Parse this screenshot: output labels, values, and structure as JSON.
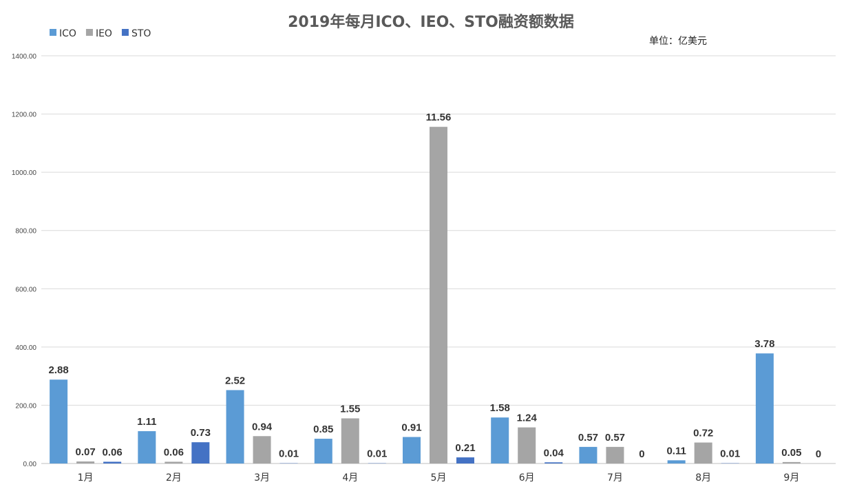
{
  "chart_data": {
    "type": "bar",
    "title": "2019年每月ICO、IEO、STO融资额数据",
    "unit_label": "单位：亿美元",
    "categories": [
      "1月",
      "2月",
      "3月",
      "4月",
      "5月",
      "6月",
      "7月",
      "8月",
      "9月"
    ],
    "series": [
      {
        "name": "ICO",
        "color": "#5b9bd5",
        "values": [
          288,
          111,
          252,
          85,
          91,
          158,
          57,
          11,
          378
        ],
        "labels": [
          "2.88",
          "1.11",
          "2.52",
          "0.85",
          "0.91",
          "1.58",
          "0.57",
          "0.11",
          "3.78"
        ]
      },
      {
        "name": "IEO",
        "color": "#a5a5a5",
        "values": [
          7,
          6,
          94,
          155,
          1156,
          124,
          57,
          72,
          5
        ],
        "labels": [
          "0.07",
          "0.06",
          "0.94",
          "1.55",
          "11.56",
          "1.24",
          "0.57",
          "0.72",
          "0.05"
        ]
      },
      {
        "name": "STO",
        "color": "#4472c4",
        "values": [
          6,
          73,
          1,
          1,
          21,
          4,
          0,
          1,
          0
        ],
        "labels": [
          "0.06",
          "0.73",
          "0.01",
          "0.01",
          "0.21",
          "0.04",
          "0",
          "0.01",
          "0"
        ]
      }
    ],
    "yticks": [
      "0.00",
      "200.00",
      "400.00",
      "600.00",
      "800.00",
      "1000.00",
      "1200.00",
      "1400.00"
    ],
    "ylim": [
      0,
      1400
    ],
    "grid": true,
    "legend_position": "top-left"
  }
}
